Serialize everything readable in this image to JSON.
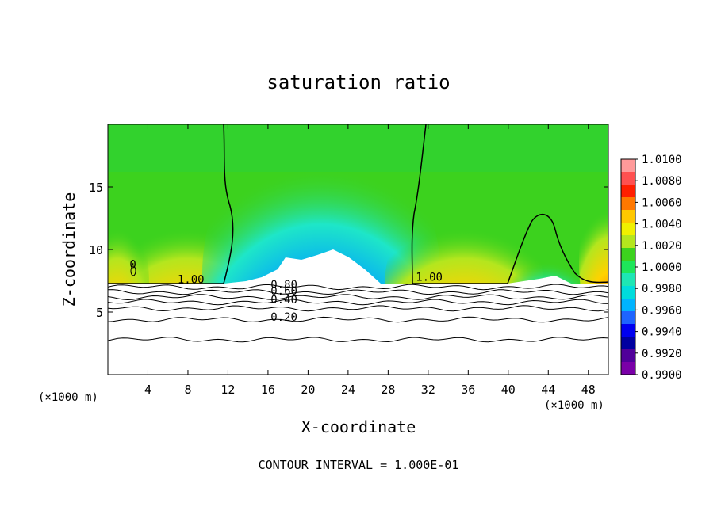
{
  "chart_data": {
    "type": "contour",
    "title": "saturation ratio",
    "xlabel": "X-coordinate",
    "ylabel": "Z-coordinate",
    "x_unit_left": "(×1000 m)",
    "x_unit_right": "(×1000 m)",
    "xlim": [
      0,
      50
    ],
    "ylim": [
      0,
      20
    ],
    "x_ticks": [
      4,
      8,
      12,
      16,
      20,
      24,
      28,
      32,
      36,
      40,
      44,
      48
    ],
    "x_tick_labels": [
      "4",
      "8",
      "12",
      "16",
      "20",
      "24",
      "28",
      "32",
      "36",
      "40",
      "44",
      "48"
    ],
    "y_ticks": [
      5,
      10,
      15
    ],
    "y_tick_labels": [
      "5",
      "10",
      "15"
    ],
    "footer": "CONTOUR INTERVAL = 1.000E-01",
    "colorbar": {
      "levels": [
        1.01,
        1.008,
        1.006,
        1.004,
        1.002,
        1.0,
        0.998,
        0.996,
        0.994,
        0.992,
        0.99
      ],
      "labels": [
        "1.0100",
        "1.0080",
        "1.0060",
        "1.0040",
        "1.0020",
        "1.0000",
        "0.9980",
        "0.9960",
        "0.9940",
        "0.9920",
        "0.9900"
      ],
      "colors": [
        "#ff9a9a",
        "#ff5050",
        "#ff1e00",
        "#ff7800",
        "#ffc800",
        "#f0f000",
        "#b4e61e",
        "#3cd21e",
        "#1ee65a",
        "#1ee6b4",
        "#00dcdc",
        "#00b4ff",
        "#1e64ff",
        "#0000f0",
        "#0000a0",
        "#50009a",
        "#7a00a8"
      ]
    },
    "contour_labels": [
      {
        "text": "1.00",
        "x": 8.3,
        "y": 7.3
      },
      {
        "text": "1.00",
        "x": 32.1,
        "y": 7.5
      },
      {
        "text": "0.80",
        "x": 17.6,
        "y": 6.9
      },
      {
        "text": "0.60",
        "x": 17.6,
        "y": 6.4
      },
      {
        "text": "0.40",
        "x": 17.6,
        "y": 5.7
      },
      {
        "text": "0.20",
        "x": 17.6,
        "y": 4.3
      },
      {
        "text": "0",
        "x": 2.5,
        "y": 8.5
      }
    ],
    "contour_lines_below": [
      7.0,
      6.6,
      6.2,
      5.8,
      5.3,
      4.4,
      2.8
    ]
  }
}
